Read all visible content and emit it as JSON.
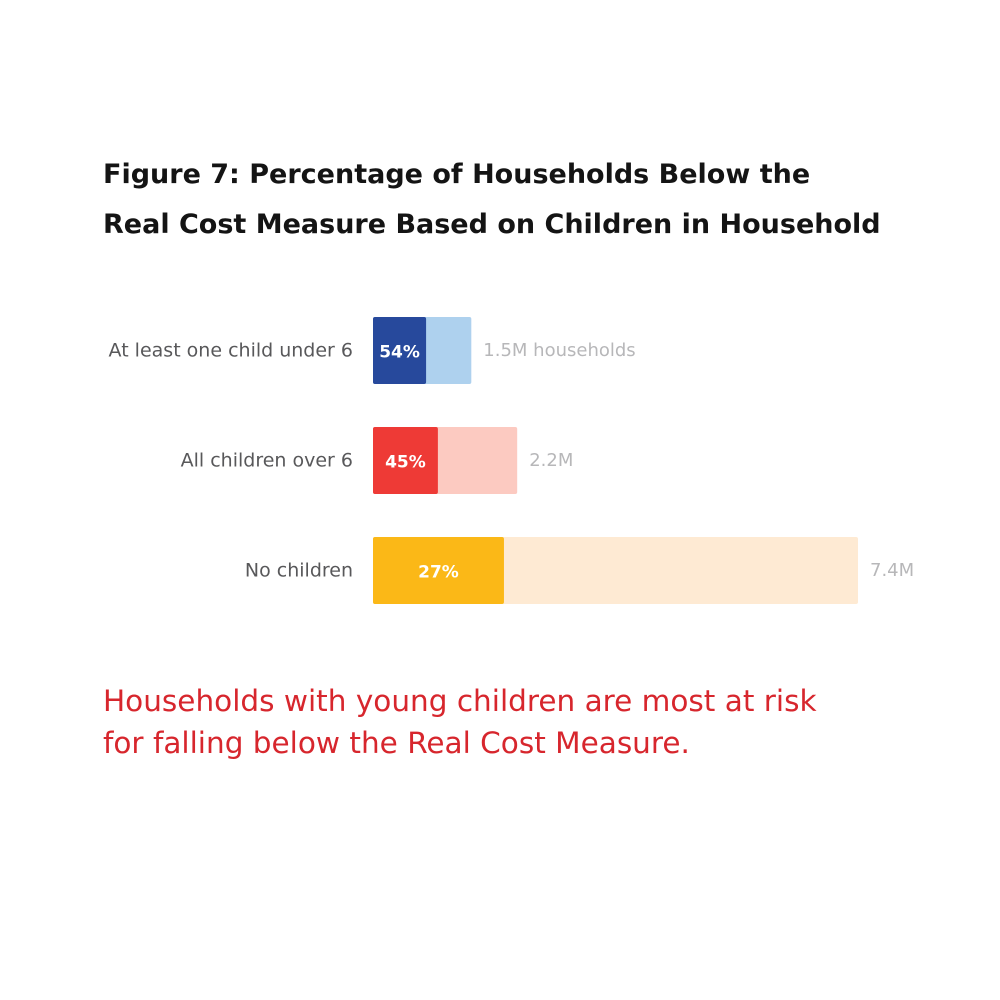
{
  "figure": {
    "title_line1": "Figure 7: Percentage of Households Below the",
    "title_line2": "Real Cost Measure Based on Children in Household"
  },
  "chart_data": {
    "type": "bar",
    "orientation": "horizontal",
    "stacked": true,
    "categories": [
      "At least one child under 6",
      "All children over 6",
      "No children"
    ],
    "below_pct": [
      54,
      45,
      27
    ],
    "below_pct_labels": [
      "54%",
      "45%",
      "27%"
    ],
    "households_millions": [
      1.5,
      2.2,
      7.4
    ],
    "households_labels": [
      "1.5M households",
      "2.2M",
      "7.4M"
    ],
    "colors": {
      "below": [
        "#27499c",
        "#ee3a36",
        "#fbb817"
      ],
      "total": [
        "#aed1ee",
        "#fccac1",
        "#feead3"
      ]
    },
    "grid": false,
    "legend": "none"
  },
  "takeaway": {
    "line1": "Households with young children are most at risk",
    "line2": "for falling below the Real Cost Measure."
  }
}
